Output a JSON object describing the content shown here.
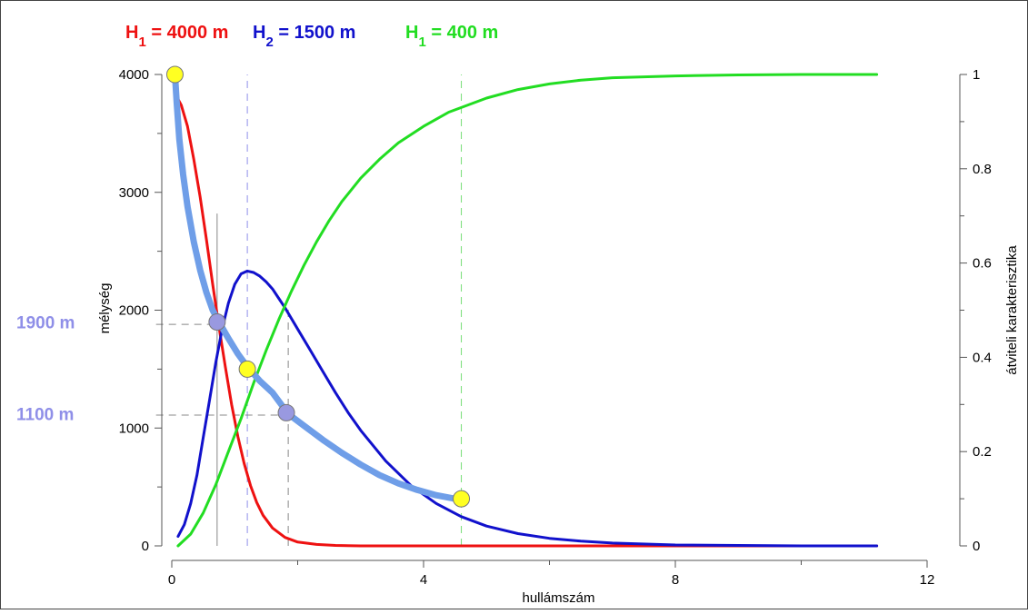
{
  "chart_data": {
    "type": "line",
    "xlabel": "hullámszám",
    "ylabel_left": "mélység",
    "ylabel_right": "átviteli karakterisztika",
    "x_range": [
      0,
      12
    ],
    "y_left_range": [
      0,
      4000
    ],
    "y_right_range": [
      0,
      1
    ],
    "x_ticks": [
      "0",
      "4",
      "8",
      "12"
    ],
    "x_tick_values": [
      0,
      4,
      8,
      12
    ],
    "x_minor_ticks": [
      2,
      6,
      10
    ],
    "y_left_ticks": [
      "0",
      "1000",
      "2000",
      "3000",
      "4000"
    ],
    "y_left_tick_values": [
      0,
      1000,
      2000,
      3000,
      4000
    ],
    "y_left_minor_ticks": [
      500,
      1500,
      2500,
      3500
    ],
    "y_right_ticks": [
      "0",
      "0.2",
      "0.4",
      "0.6",
      "0.8",
      "1"
    ],
    "y_right_tick_values": [
      0,
      0.2,
      0.4,
      0.6,
      0.8,
      1
    ],
    "y_right_minor_ticks": [
      0.1,
      0.3,
      0.5,
      0.7,
      0.9
    ],
    "grid": false,
    "legend": {
      "placement": "top",
      "entries": [
        {
          "text": "H",
          "sub": "1",
          "rest": " = 4000 m",
          "color": "#ee1111"
        },
        {
          "text": "H",
          "sub": "2",
          "rest": " = 1500 m",
          "color": "#1111cc"
        },
        {
          "text": "H",
          "sub": "1",
          "rest": " = 400 m",
          "color": "#22dd22"
        }
      ]
    },
    "annotations": [
      {
        "text": "1900 m",
        "y": 1900,
        "color": "#8f8fe8"
      },
      {
        "text": "1100 m",
        "y": 1120,
        "color": "#8f8fe8"
      }
    ],
    "series": [
      {
        "axis": "right",
        "color": "#ee1111",
        "x": [
          0.07,
          0.15,
          0.25,
          0.35,
          0.45,
          0.55,
          0.65,
          0.75,
          0.85,
          0.95,
          1.05,
          1.15,
          1.25,
          1.35,
          1.45,
          1.6,
          1.8,
          2.0,
          2.3,
          2.6,
          3.0,
          4.0,
          6.0,
          8.0,
          10.0,
          11.2
        ],
        "y": [
          0.955,
          0.935,
          0.89,
          0.82,
          0.74,
          0.65,
          0.555,
          0.465,
          0.38,
          0.3,
          0.232,
          0.175,
          0.128,
          0.092,
          0.065,
          0.038,
          0.018,
          0.008,
          0.003,
          0.001,
          0.0,
          0.0,
          0.0,
          0.0,
          0.0,
          0.0
        ]
      },
      {
        "axis": "right",
        "color": "#1111cc",
        "x": [
          0.1,
          0.2,
          0.3,
          0.4,
          0.5,
          0.6,
          0.7,
          0.8,
          0.9,
          1.0,
          1.1,
          1.2,
          1.3,
          1.4,
          1.5,
          1.6,
          1.7,
          1.8,
          2.0,
          2.2,
          2.4,
          2.6,
          2.8,
          3.0,
          3.4,
          3.8,
          4.2,
          4.6,
          5.0,
          5.5,
          6.0,
          6.5,
          7.0,
          8.0,
          9.0,
          10.0,
          11.2
        ],
        "y": [
          0.02,
          0.045,
          0.09,
          0.15,
          0.23,
          0.31,
          0.39,
          0.46,
          0.515,
          0.555,
          0.577,
          0.583,
          0.58,
          0.572,
          0.56,
          0.545,
          0.525,
          0.505,
          0.46,
          0.415,
          0.37,
          0.325,
          0.283,
          0.245,
          0.18,
          0.128,
          0.09,
          0.062,
          0.042,
          0.026,
          0.016,
          0.01,
          0.006,
          0.002,
          0.001,
          0.0,
          0.0
        ]
      },
      {
        "axis": "right",
        "color": "#22dd22",
        "x": [
          0.1,
          0.3,
          0.5,
          0.7,
          0.9,
          1.1,
          1.3,
          1.5,
          1.7,
          1.9,
          2.1,
          2.3,
          2.5,
          2.7,
          3.0,
          3.3,
          3.6,
          4.0,
          4.4,
          5.0,
          5.5,
          6.0,
          6.5,
          7.0,
          8.0,
          9.0,
          10.0,
          11.2
        ],
        "y": [
          0.0,
          0.025,
          0.07,
          0.13,
          0.2,
          0.27,
          0.345,
          0.415,
          0.48,
          0.54,
          0.595,
          0.645,
          0.69,
          0.73,
          0.78,
          0.82,
          0.855,
          0.89,
          0.92,
          0.95,
          0.968,
          0.98,
          0.988,
          0.993,
          0.997,
          0.999,
          1.0,
          1.0
        ]
      },
      {
        "axis": "left",
        "color": "#6f9ee8",
        "x": [
          0.05,
          0.08,
          0.12,
          0.18,
          0.25,
          0.35,
          0.45,
          0.55,
          0.65,
          0.75,
          0.9,
          1.05,
          1.2,
          1.4,
          1.6,
          1.85,
          2.1,
          2.4,
          2.7,
          3.0,
          3.3,
          3.6,
          3.9,
          4.2,
          4.6
        ],
        "y": [
          4000,
          3750,
          3450,
          3150,
          2880,
          2580,
          2340,
          2150,
          2000,
          1900,
          1760,
          1630,
          1520,
          1400,
          1300,
          1120,
          1020,
          900,
          790,
          690,
          600,
          530,
          475,
          430,
          390
        ]
      }
    ],
    "markers": [
      {
        "x": 0.05,
        "y": 4000,
        "color": "#ffff22",
        "axis": "left"
      },
      {
        "x": 0.72,
        "y": 1900,
        "color": "#9999e0",
        "axis": "left"
      },
      {
        "x": 1.2,
        "y": 1500,
        "color": "#ffff22",
        "axis": "left"
      },
      {
        "x": 1.82,
        "y": 1130,
        "color": "#9999e0",
        "axis": "left"
      },
      {
        "x": 4.6,
        "y": 400,
        "color": "#ffff22",
        "axis": "left"
      }
    ],
    "reference_lines": [
      {
        "type": "vertical",
        "x": 1.2,
        "y_from": 0,
        "y_to": 4000,
        "color": "#8f8fe8",
        "dash": true
      },
      {
        "type": "vertical",
        "x": 4.6,
        "y_from": 0,
        "y_to": 4000,
        "color": "#77dd77",
        "dash": true
      },
      {
        "type": "vertical",
        "x": 0.72,
        "y_from": 0,
        "y_to": 2820,
        "color": "#888888",
        "dash": false
      },
      {
        "type": "vertical",
        "x": 1.85,
        "y_from": 0,
        "y_to": 2030,
        "color": "#888888",
        "dash": true
      },
      {
        "type": "horizontal",
        "y": 1880,
        "x_from": -0.25,
        "x_to": 0.72,
        "color": "#888888",
        "dash": true
      },
      {
        "type": "horizontal",
        "y": 1110,
        "x_from": -0.25,
        "x_to": 1.85,
        "color": "#888888",
        "dash": true
      }
    ]
  }
}
